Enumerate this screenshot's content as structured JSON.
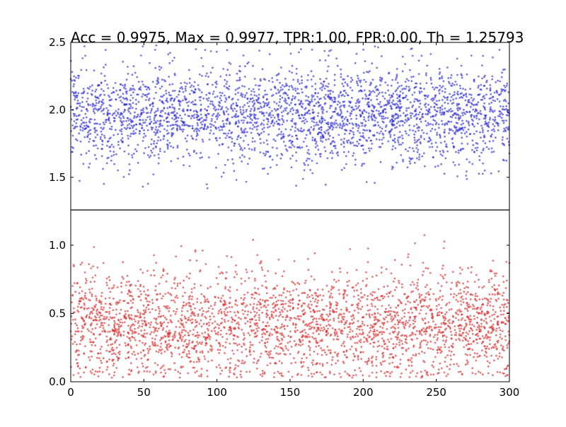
{
  "chart_data": {
    "type": "scatter",
    "title": "Acc = 0.9975, Max = 0.9977, TPR:1.00, FPR:0.00, Th = 1.25793",
    "xlabel": "",
    "ylabel": "",
    "xlim": [
      0,
      300
    ],
    "ylim": [
      0.0,
      2.5
    ],
    "x_ticks": [
      "0",
      "50",
      "100",
      "150",
      "200",
      "250",
      "300"
    ],
    "x_tick_values": [
      0,
      50,
      100,
      150,
      200,
      250,
      300
    ],
    "y_ticks": [
      "0.0",
      "0.5",
      "1.0",
      "1.5",
      "2.0",
      "2.5"
    ],
    "y_tick_values": [
      0.0,
      0.5,
      1.0,
      1.5,
      2.0,
      2.5
    ],
    "threshold": 1.25793,
    "grid": false,
    "legend": "none",
    "series": [
      {
        "color": "#3333dd",
        "points_per_x": 10,
        "x_range": [
          0,
          300
        ],
        "y_center": 1.97,
        "y_spread": 0.18,
        "y_min": 1.27,
        "y_max": 2.48
      },
      {
        "color": "#dd3333",
        "points_per_x": 10,
        "x_range": [
          0,
          300
        ],
        "y_center": 0.42,
        "y_spread": 0.2,
        "y_min": 0.03,
        "y_max": 1.24
      }
    ]
  }
}
